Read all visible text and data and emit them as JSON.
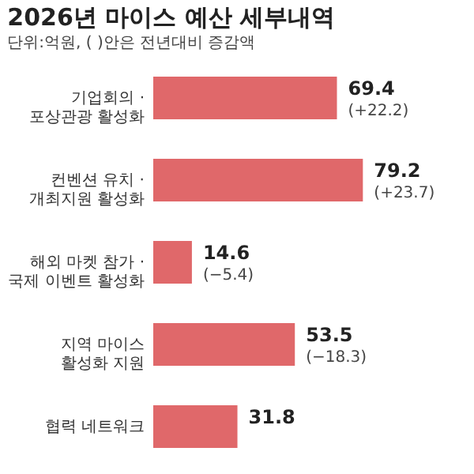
{
  "chart_data": {
    "type": "bar",
    "orientation": "horizontal",
    "title": "2026년 마이스 예산 세부내역",
    "subtitle": "단위:억원, (  )안은 전년대비 증감액",
    "categories": [
      "기업회의 ·\n포상관광 활성화",
      "컨벤션 유치 ·\n개최지원 활성화",
      "해외 마켓 참가 ·\n국제 이벤트 활성화",
      "지역 마이스\n활성화 지원",
      "협력 네트워크"
    ],
    "values": [
      69.4,
      79.2,
      14.6,
      53.5,
      31.8
    ],
    "value_labels": [
      "69.4",
      "79.2",
      "14.6",
      "53.5",
      "31.8"
    ],
    "annotations": [
      {
        "text": "(+22.2)",
        "x": 69.4,
        "y": "기업회의 ·\n포상관광 활성화"
      },
      {
        "text": "(+23.7)",
        "x": 79.2,
        "y": "컨벤션 유치 ·\n개최지원 활성화"
      },
      {
        "text": "(−5.4)",
        "x": 14.6,
        "y": "해외 마켓 참가 ·\n국제 이벤트 활성화"
      },
      {
        "text": "(−18.3)",
        "x": 53.5,
        "y": "지역 마이스\n활성화 지원"
      }
    ],
    "color": "#e0686a",
    "grid": false
  }
}
